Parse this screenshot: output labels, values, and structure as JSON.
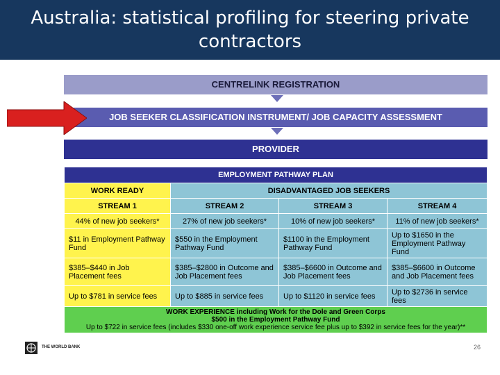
{
  "title": {
    "line1": "Australia: statistical profiling for steering private",
    "line2": "contractors"
  },
  "flow": {
    "step1": "CENTRELINK REGISTRATION",
    "step2": "JOB SEEKER CLASSIFICATION INSTRUMENT/ JOB CAPACITY ASSESSMENT",
    "step3": "PROVIDER"
  },
  "plan": {
    "header": "EMPLOYMENT PATHWAY PLAN",
    "work_ready": "WORK READY",
    "disadvantaged": "DISADVANTAGED JOB SEEKERS",
    "streams": [
      {
        "name": "STREAM 1",
        "share": "44% of new job seekers*",
        "pathway_fund": "$11 in Employment Pathway Fund",
        "placement": "$385–$440 in Job Placement fees",
        "service": "Up to $781 in service fees"
      },
      {
        "name": "STREAM 2",
        "share": "27% of new job seekers*",
        "pathway_fund": "$550 in the Employment Pathway Fund",
        "placement": "$385–$2800 in Outcome and Job Placement fees",
        "service": "Up to $885 in service fees"
      },
      {
        "name": "STREAM 3",
        "share": "10% of new job seekers*",
        "pathway_fund": "$1100 in the Employment Pathway Fund",
        "placement": "$385–$6600 in Outcome and Job Placement fees",
        "service": "Up to $1120 in service fees"
      },
      {
        "name": "STREAM 4",
        "share": "11% of new job seekers*",
        "pathway_fund": "Up to $1650 in the Employment Pathway Fund",
        "placement": "$385–$6600 in Outcome and Job Placement fees",
        "service": "Up to $2736 in service fees"
      }
    ],
    "work_experience": {
      "line1": "WORK EXPERIENCE including Work for the Dole and Green Corps",
      "line2": "$500 in the Employment Pathway Fund",
      "line3": "Up to $722 in service fees (includes $330 one-off work experience service fee plus up to $392 in service fees for the year)**"
    }
  },
  "footer": {
    "org": "THE WORLD BANK",
    "page": "26"
  },
  "colors": {
    "title_bg": "#17375e",
    "red_arrow": "#d9201f",
    "work_ready": "#fff34d",
    "disadvantaged": "#8ec5d6",
    "work_experience": "#5fcf4f"
  }
}
